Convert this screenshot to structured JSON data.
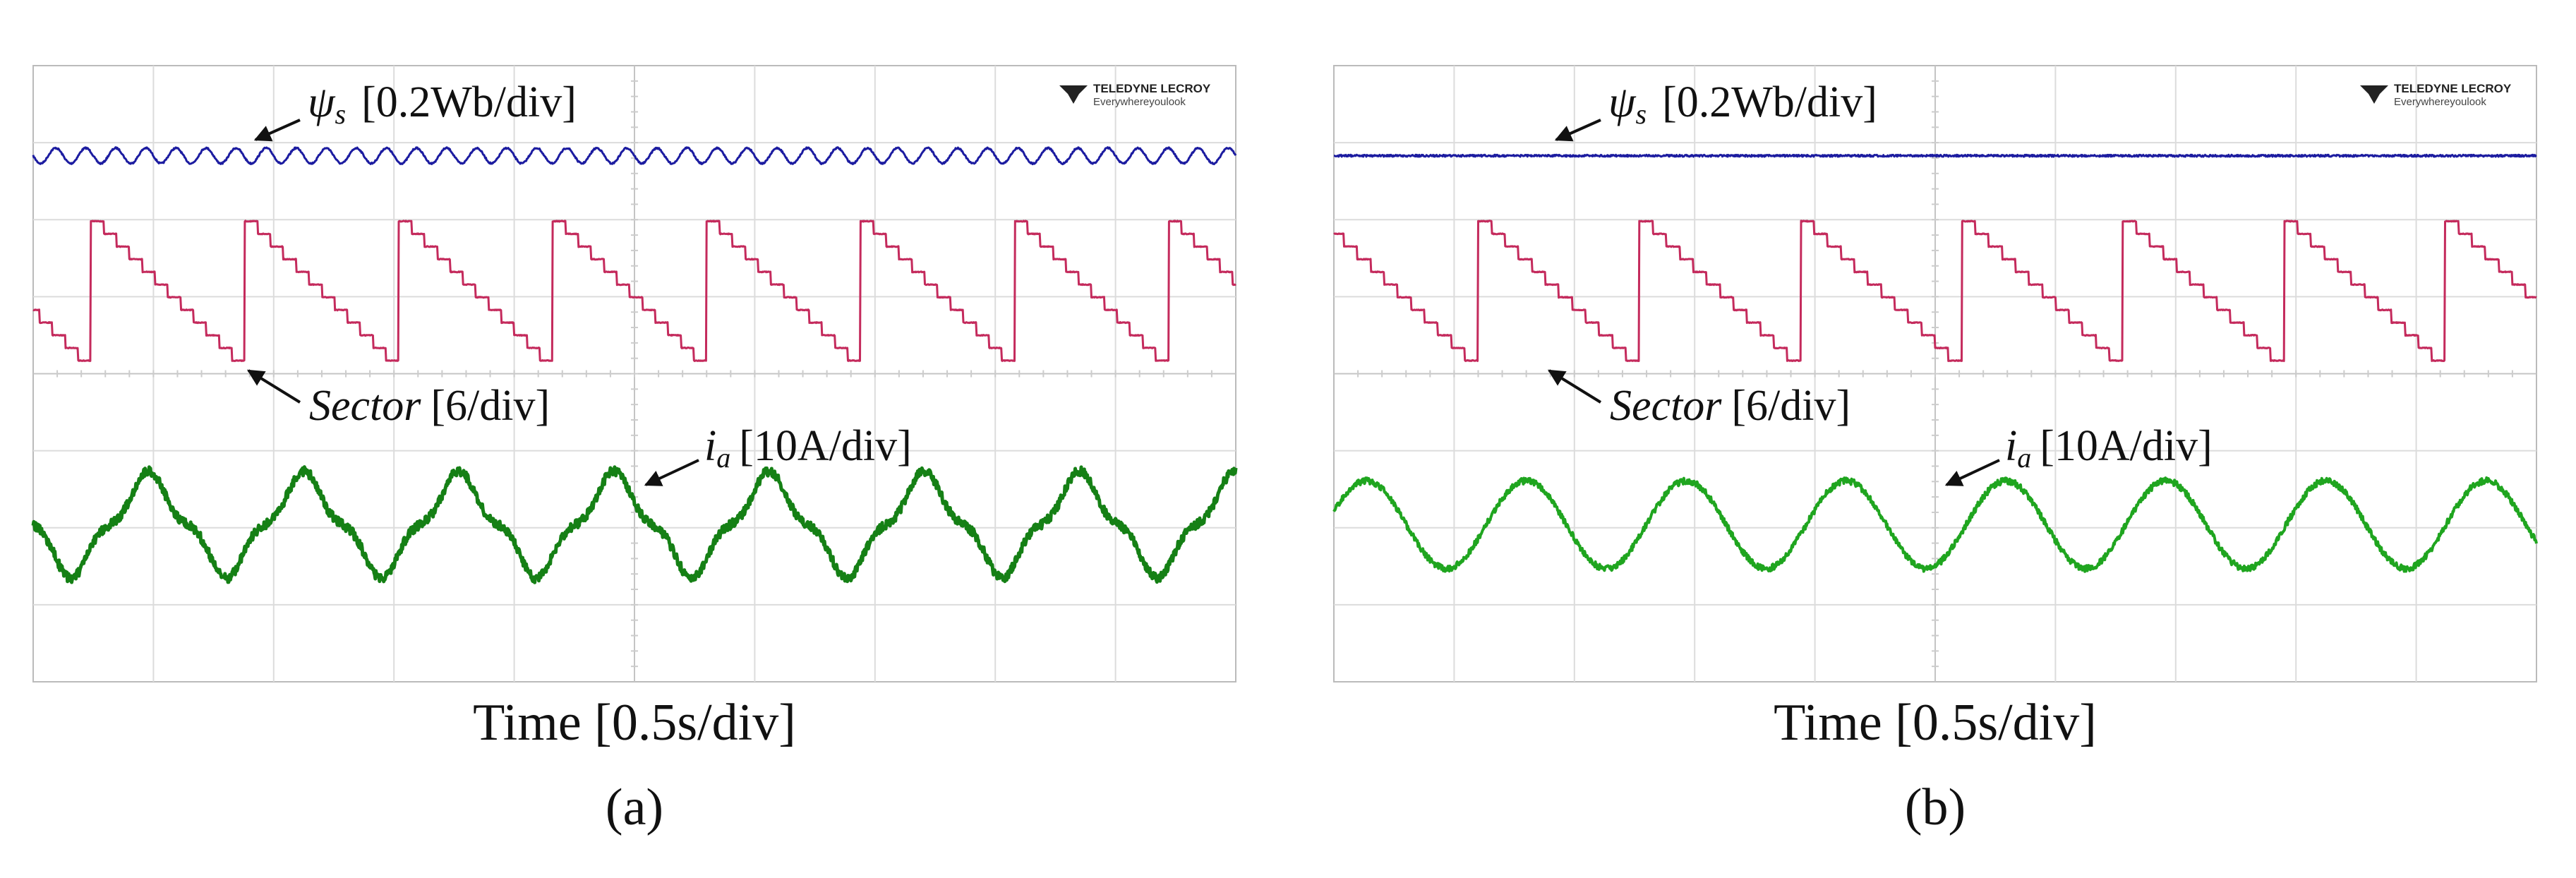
{
  "panels": [
    {
      "psi": {
        "symbol": "ψ",
        "sub": "s",
        "scale": "[0.2Wb/div]"
      },
      "sector": {
        "name": "Sector",
        "scale": "[6/div]"
      },
      "current": {
        "symbol": "i",
        "sub": "a",
        "scale": "[10A/div]"
      },
      "logo": {
        "brand": "TELEDYNE LECROY",
        "tagline": "Everywhereyoulook"
      },
      "x_label": "Time [0.5s/div]",
      "caption": "(a)"
    },
    {
      "psi": {
        "symbol": "ψ",
        "sub": "s",
        "scale": "[0.2Wb/div]"
      },
      "sector": {
        "name": "Sector",
        "scale": "[6/div]"
      },
      "current": {
        "symbol": "i",
        "sub": "a",
        "scale": "[10A/div]"
      },
      "logo": {
        "brand": "TELEDYNE LECROY",
        "tagline": "Everywhereyoulook"
      },
      "x_label": "Time [0.5s/div]",
      "caption": "(b)"
    }
  ]
}
